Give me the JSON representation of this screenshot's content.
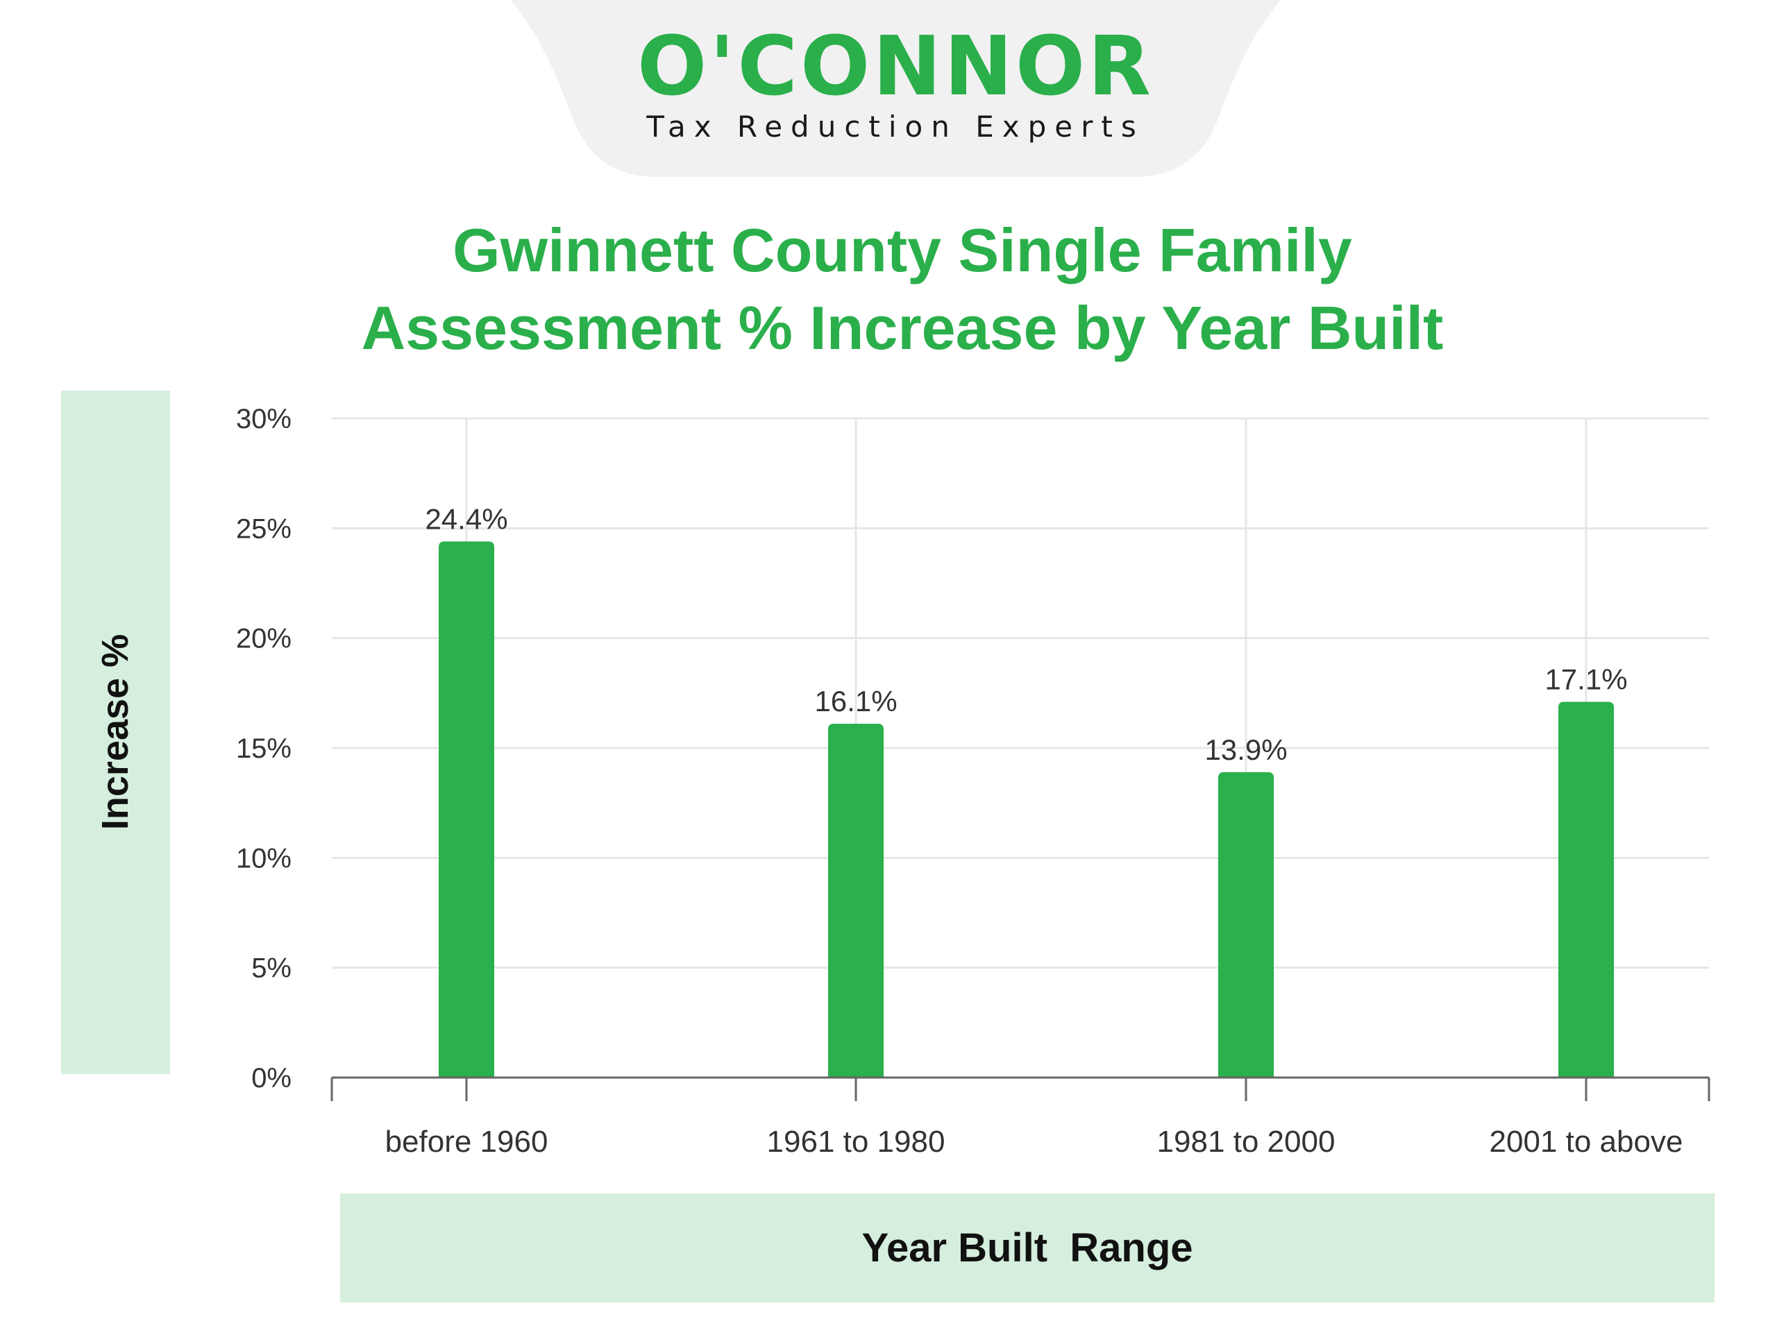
{
  "header": {
    "logo_word": "O'CONNOR",
    "tagline": "Tax Reduction Experts",
    "brand_color": "#2aaf4b",
    "tab_color": "#f1f1f1"
  },
  "chart_data": {
    "type": "bar",
    "title_lines": [
      "Gwinnett County Single Family",
      "Assessment % Increase by Year Built"
    ],
    "categories": [
      "before 1960",
      "1961 to 1980",
      "1981 to 2000",
      "2001 to above"
    ],
    "values": [
      24.4,
      16.1,
      13.9,
      17.1
    ],
    "data_labels": [
      "24.4%",
      "16.1%",
      "13.9%",
      "17.1%"
    ],
    "xlabel": "Year Built  Range",
    "ylabel": "Increase %",
    "ylim": [
      0,
      30
    ],
    "yticks": [
      0,
      5,
      10,
      15,
      20,
      25,
      30
    ],
    "ytick_labels": [
      "0%",
      "5%",
      "10%",
      "15%",
      "20%",
      "25%",
      "30%"
    ],
    "grid": true,
    "bar_color": "#2ab04c",
    "label_panel_color": "#d5eedd"
  }
}
